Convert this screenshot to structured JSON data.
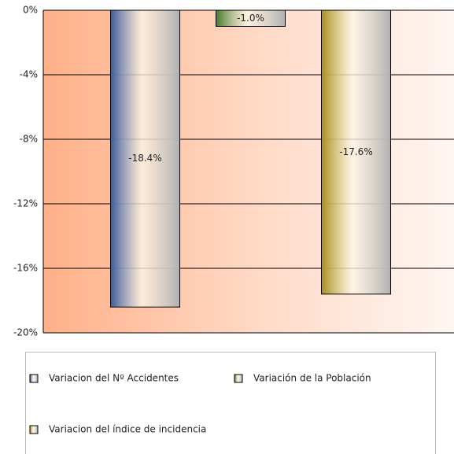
{
  "chart_data": {
    "type": "bar",
    "series": [
      {
        "name": "Variacion del Nº Accidentes",
        "color": "#3a5a9a",
        "values": [
          -18.4
        ],
        "value_labels": [
          "-18.4%"
        ]
      },
      {
        "name": "Variación de la Población",
        "color": "#4a7a2a",
        "values": [
          -1.0
        ],
        "value_labels": [
          "-1.0%"
        ]
      },
      {
        "name": "Variacion del índice de incidencia",
        "color": "#a8901c",
        "values": [
          -17.6
        ],
        "value_labels": [
          "-17.6%"
        ]
      }
    ],
    "ylim": [
      -20,
      0
    ],
    "yticks": [
      {
        "value": 0,
        "label": "0%"
      },
      {
        "value": -4,
        "label": "-4%"
      },
      {
        "value": -8,
        "label": "-8%"
      },
      {
        "value": -12,
        "label": "-12%"
      },
      {
        "value": -16,
        "label": "-16%"
      },
      {
        "value": -20,
        "label": "-20%"
      }
    ],
    "grid": true
  }
}
